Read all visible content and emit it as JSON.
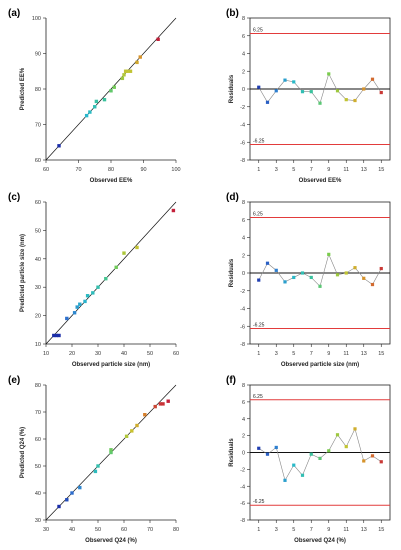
{
  "colors": {
    "axis": "#222222",
    "fit_line": "#111111",
    "limit_line": "#e23b3b",
    "resid_line": "#888888",
    "zero_line": "#111111",
    "gradient": [
      "#1b2ea8",
      "#2f74d0",
      "#28b8cc",
      "#38c2a0",
      "#7dcc4a",
      "#c9c330",
      "#d88a2a",
      "#c4203a"
    ]
  },
  "chart_data": [
    {
      "panel_label": "(a)",
      "type": "scatter",
      "xlabel": "Observed EE%",
      "ylabel": "Predicted EE%",
      "xlim": [
        60,
        100
      ],
      "ylim": [
        60,
        100
      ],
      "xticks": [
        60,
        70,
        80,
        90,
        100
      ],
      "yticks": [
        60,
        70,
        80,
        90,
        100
      ],
      "fit_line": [
        [
          60,
          60
        ],
        [
          100,
          100
        ]
      ],
      "points": [
        [
          64,
          64
        ],
        [
          72.5,
          72.5
        ],
        [
          73.5,
          73.5
        ],
        [
          75,
          75
        ],
        [
          75.5,
          76.5
        ],
        [
          78,
          77
        ],
        [
          80,
          79.5
        ],
        [
          81,
          80.5
        ],
        [
          83.5,
          83
        ],
        [
          84,
          84
        ],
        [
          84.5,
          85
        ],
        [
          85,
          85
        ],
        [
          86,
          85
        ],
        [
          88,
          87.5
        ],
        [
          89,
          89
        ],
        [
          94.5,
          94
        ]
      ]
    },
    {
      "panel_label": "(b)",
      "type": "line",
      "xlabel": "Observed EE%",
      "ylabel": "Residuals",
      "xlim": [
        0,
        16
      ],
      "ylim": [
        -8,
        8
      ],
      "xticks": [
        1,
        3,
        5,
        7,
        9,
        11,
        13,
        15
      ],
      "yticks": [
        -8,
        -6,
        -4,
        -2,
        0,
        2,
        4,
        6,
        8
      ],
      "limits": [
        6.25,
        -6.25
      ],
      "limit_labels": [
        "6.25",
        "-6.25"
      ],
      "x": [
        1,
        2,
        3,
        4,
        5,
        6,
        7,
        8,
        9,
        10,
        11,
        12,
        13,
        14,
        15
      ],
      "values": [
        0.2,
        -1.5,
        -0.2,
        1.0,
        0.8,
        -0.3,
        -0.3,
        -1.6,
        1.7,
        -0.2,
        -1.2,
        -1.3,
        0.0,
        1.1,
        -0.4
      ]
    },
    {
      "panel_label": "(c)",
      "type": "scatter",
      "xlabel": "Observed particle size (nm)",
      "ylabel": "Predicted particle size (nm)",
      "xlim": [
        10,
        60
      ],
      "ylim": [
        10,
        60
      ],
      "xticks": [
        10,
        20,
        30,
        40,
        50,
        60
      ],
      "yticks": [
        10,
        20,
        30,
        40,
        50,
        60
      ],
      "fit_line": [
        [
          10,
          10
        ],
        [
          60,
          60
        ]
      ],
      "points": [
        [
          13,
          13
        ],
        [
          14,
          13
        ],
        [
          15,
          13
        ],
        [
          18,
          19
        ],
        [
          21,
          21
        ],
        [
          22,
          23
        ],
        [
          23,
          24
        ],
        [
          25,
          25
        ],
        [
          26,
          27
        ],
        [
          28,
          28
        ],
        [
          30,
          30
        ],
        [
          33,
          33
        ],
        [
          37,
          37
        ],
        [
          40,
          42
        ],
        [
          45,
          44
        ],
        [
          59,
          57
        ]
      ]
    },
    {
      "panel_label": "(d)",
      "type": "line",
      "xlabel": "Observed particle size (nm)",
      "ylabel": "Residuals",
      "xlim": [
        0,
        16
      ],
      "ylim": [
        -8,
        8
      ],
      "xticks": [
        1,
        3,
        5,
        7,
        9,
        11,
        13,
        15
      ],
      "yticks": [
        -8,
        -6,
        -4,
        -2,
        0,
        2,
        4,
        6,
        8
      ],
      "limits": [
        6.25,
        -6.25
      ],
      "limit_labels": [
        "6.25",
        "-6.25"
      ],
      "x": [
        1,
        2,
        3,
        4,
        5,
        6,
        7,
        8,
        9,
        10,
        11,
        12,
        13,
        14,
        15
      ],
      "values": [
        -0.8,
        1.1,
        0.3,
        -1.0,
        -0.5,
        0.0,
        -0.5,
        -1.5,
        2.1,
        -0.2,
        0.0,
        0.6,
        -0.6,
        -1.3,
        0.5
      ]
    },
    {
      "panel_label": "(e)",
      "type": "scatter",
      "xlabel": "Observed Q24 (%)",
      "ylabel": "Predicted Q24 (%)",
      "xlim": [
        30,
        80
      ],
      "ylim": [
        30,
        80
      ],
      "xticks": [
        30,
        40,
        50,
        60,
        70,
        80
      ],
      "yticks": [
        30,
        40,
        50,
        60,
        70,
        80
      ],
      "fit_line": [
        [
          30,
          30
        ],
        [
          80,
          80
        ]
      ],
      "points": [
        [
          35,
          35
        ],
        [
          38,
          37.5
        ],
        [
          40,
          40
        ],
        [
          43,
          42
        ],
        [
          49,
          48
        ],
        [
          50,
          50
        ],
        [
          55,
          55
        ],
        [
          55,
          56
        ],
        [
          61,
          61
        ],
        [
          63,
          63
        ],
        [
          65,
          65
        ],
        [
          68,
          69
        ],
        [
          72,
          72
        ],
        [
          74,
          73
        ],
        [
          75,
          73
        ],
        [
          77,
          74
        ]
      ]
    },
    {
      "panel_label": "(f)",
      "type": "line",
      "xlabel": "Observed Q24 (%)",
      "ylabel": "Residuals",
      "xlim": [
        0,
        16
      ],
      "ylim": [
        -8,
        8
      ],
      "xticks": [
        1,
        3,
        5,
        7,
        9,
        11,
        13,
        15
      ],
      "yticks": [
        -8,
        -6,
        -4,
        -2,
        0,
        2,
        4,
        6,
        8
      ],
      "limits": [
        6.25,
        -6.25
      ],
      "limit_labels": [
        "6.25",
        "-6.25"
      ],
      "x": [
        1,
        2,
        3,
        4,
        5,
        6,
        7,
        8,
        9,
        10,
        11,
        12,
        13,
        14,
        15
      ],
      "values": [
        0.5,
        -0.2,
        0.6,
        -3.3,
        -1.5,
        -2.7,
        -0.2,
        -0.7,
        0.2,
        2.1,
        0.7,
        2.8,
        -1.0,
        -0.4,
        -1.1
      ]
    }
  ]
}
